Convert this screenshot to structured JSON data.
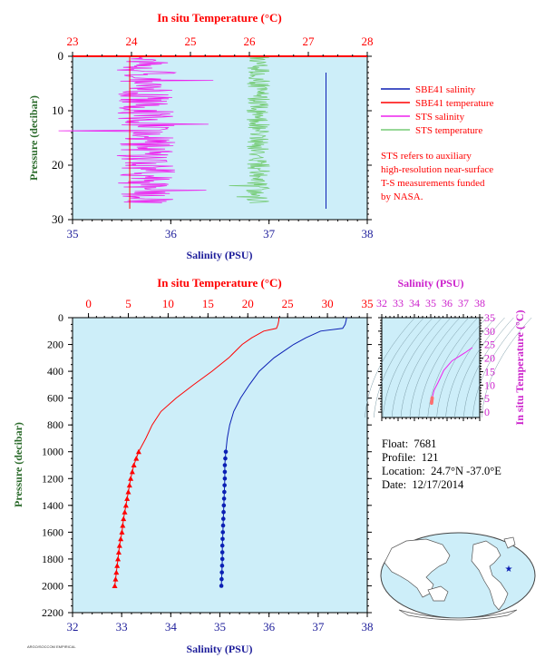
{
  "colors": {
    "plot_bg": "#cdeef9",
    "sbe_salinity": "#0b1fb4",
    "sbe_temperature": "#ff0000",
    "sts_salinity": "#ee22ee",
    "sts_temperature": "#77cc77",
    "axis_red": "#ff0000",
    "axis_blue": "#1d1d9a",
    "axis_green": "#2a6a2a",
    "axis_magenta": "#cc22cc"
  },
  "top_panel": {
    "top_axis_label": "In situ Temperature (°C)",
    "bottom_axis_label": "Salinity (PSU)",
    "left_axis_label": "Pressure (decibar)",
    "temp_ticks": [
      "23",
      "24",
      "25",
      "26",
      "27",
      "28"
    ],
    "sal_ticks": [
      "35",
      "36",
      "37",
      "38"
    ],
    "pres_ticks": [
      "0",
      "10",
      "20",
      "30"
    ],
    "legend": [
      {
        "label": "SBE41 salinity",
        "color": "#0b1fb4"
      },
      {
        "label": "SBE41 temperature",
        "color": "#ff0000"
      },
      {
        "label": "STS salinity",
        "color": "#ee22ee"
      },
      {
        "label": "STS temperature",
        "color": "#77cc77"
      }
    ],
    "note_lines": [
      "STS refers to auxiliary",
      "high-resolution near-surface",
      "T-S measurements funded",
      "by NASA."
    ]
  },
  "bottom_panel": {
    "top_axis_label": "In situ Temperature (°C)",
    "bottom_axis_label": "Salinity (PSU)",
    "left_axis_label": "Pressure (decibar)",
    "temp_ticks": [
      "0",
      "5",
      "10",
      "15",
      "20",
      "25",
      "30",
      "35"
    ],
    "sal_ticks": [
      "32",
      "33",
      "34",
      "35",
      "36",
      "37",
      "38"
    ],
    "pres_ticks": [
      "0",
      "200",
      "400",
      "600",
      "800",
      "1000",
      "1200",
      "1400",
      "1600",
      "1800",
      "2000",
      "2200"
    ]
  },
  "ts_inset": {
    "top_axis_label": "Salinity (PSU)",
    "right_axis_label": "In situ Temperature (°C)",
    "sal_ticks": [
      "32",
      "33",
      "34",
      "35",
      "36",
      "37",
      "38"
    ],
    "temp_ticks": [
      "0",
      "5",
      "10",
      "15",
      "20",
      "25",
      "30",
      "35"
    ]
  },
  "info": {
    "float_label": "Float:",
    "float_value": "7681",
    "profile_label": "Profile:",
    "profile_value": "121",
    "location_label": "Location:",
    "location_value": "24.7°N  -37.0°E",
    "date_label": "Date:",
    "date_value": "12/17/2014"
  },
  "footer_text": "ARGO/SOCCOM EMPIRICAL",
  "chart_data": [
    {
      "type": "line",
      "name": "near-surface profile",
      "x_top_axis": "In situ Temperature (°C)",
      "x_bottom_axis": "Salinity (PSU)",
      "ylabel": "Pressure (decibar)",
      "temp_range": [
        23,
        28
      ],
      "sal_range": [
        35,
        38
      ],
      "pressure_range": [
        0,
        30
      ],
      "series": [
        {
          "name": "SBE41 salinity",
          "axis": "salinity",
          "pressure": [
            3,
            28
          ],
          "values": [
            37.58,
            37.58
          ]
        },
        {
          "name": "SBE41 temperature",
          "axis": "temperature",
          "pressure": [
            0,
            28
          ],
          "values": [
            23.97,
            23.97
          ]
        },
        {
          "name": "STS salinity",
          "axis": "salinity",
          "mean": 35.75,
          "spread": 0.3,
          "pressure_range": [
            0,
            27
          ]
        },
        {
          "name": "STS temperature",
          "axis": "temperature",
          "mean": 26.15,
          "spread": 0.2,
          "pressure_range": [
            0,
            27
          ]
        }
      ]
    },
    {
      "type": "line",
      "name": "full-depth profile",
      "x_top_axis": "In situ Temperature (°C)",
      "x_bottom_axis": "Salinity (PSU)",
      "ylabel": "Pressure (decibar)",
      "temp_range": [
        -2,
        35
      ],
      "sal_range": [
        32,
        38
      ],
      "pressure_range": [
        0,
        2200
      ],
      "series": [
        {
          "name": "SBE41 temperature",
          "axis": "temperature",
          "pressure": [
            0,
            20,
            50,
            80,
            100,
            150,
            200,
            300,
            400,
            500,
            600,
            700,
            800,
            900,
            1000,
            1100,
            1200,
            1300,
            1400,
            1500,
            1600,
            1700,
            1800,
            1900,
            2000
          ],
          "values": [
            23.9,
            23.9,
            23.8,
            23.6,
            22.0,
            20.5,
            19.3,
            17.6,
            15.5,
            13.2,
            11.0,
            9.1,
            8.0,
            7.2,
            6.3,
            5.7,
            5.3,
            5.0,
            4.7,
            4.4,
            4.2,
            3.9,
            3.7,
            3.5,
            3.3
          ]
        },
        {
          "name": "SBE41 salinity",
          "axis": "salinity",
          "pressure": [
            0,
            20,
            50,
            80,
            100,
            150,
            200,
            300,
            400,
            500,
            600,
            700,
            800,
            900,
            1000,
            1100,
            1200,
            1300,
            1400,
            1500,
            1600,
            1700,
            1800,
            1900,
            2000
          ],
          "values": [
            37.58,
            37.57,
            37.55,
            37.5,
            37.05,
            36.75,
            36.5,
            36.1,
            35.8,
            35.6,
            35.42,
            35.28,
            35.2,
            35.15,
            35.12,
            35.1,
            35.1,
            35.09,
            35.08,
            35.07,
            35.06,
            35.05,
            35.05,
            35.04,
            35.03
          ]
        }
      ]
    },
    {
      "type": "scatter",
      "name": "T-S diagram",
      "xlabel": "Salinity (PSU)",
      "ylabel": "In situ Temperature (°C)",
      "xlim": [
        32,
        38
      ],
      "ylim": [
        -2,
        35
      ],
      "points": [
        {
          "s": 35.05,
          "t": 3.5
        },
        {
          "s": 35.1,
          "t": 5.5
        },
        {
          "s": 35.2,
          "t": 8.0
        },
        {
          "s": 35.45,
          "t": 11.0
        },
        {
          "s": 35.8,
          "t": 15.5
        },
        {
          "s": 36.3,
          "t": 19.0
        },
        {
          "s": 37.1,
          "t": 22.0
        },
        {
          "s": 37.55,
          "t": 23.9
        }
      ]
    }
  ]
}
